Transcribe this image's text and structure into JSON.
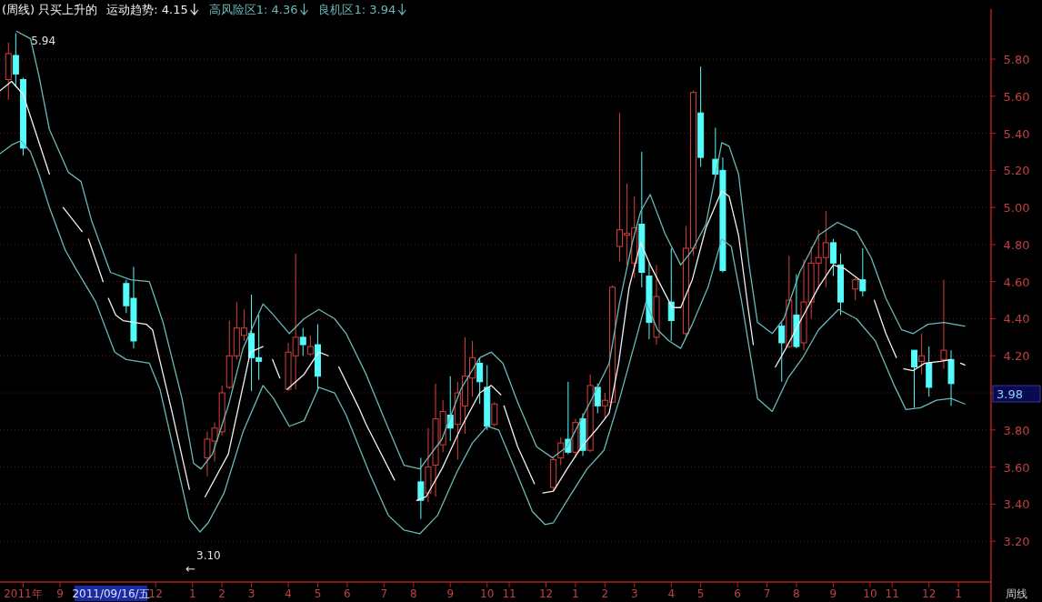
{
  "chart_data": {
    "type": "candlestick",
    "title": "(周线) 只买上升的",
    "legend": "top left",
    "grid": "y",
    "line_style": "solid",
    "xlim": [
      "2011-07-07",
      "2014-02-03"
    ],
    "ylim": [
      2.98,
      6.07
    ],
    "xticks": [
      {
        "value": "2011-07-29",
        "label": "2011年"
      },
      {
        "value": "2011-09-02",
        "label": "9"
      },
      {
        "value": "2011-12-02",
        "label": "12"
      },
      {
        "value": "2012-01-06",
        "label": "1"
      },
      {
        "value": "2012-02-03",
        "label": "2"
      },
      {
        "value": "2012-03-02",
        "label": "3"
      },
      {
        "value": "2012-04-06",
        "label": "4"
      },
      {
        "value": "2012-05-04",
        "label": "5"
      },
      {
        "value": "2012-06-01",
        "label": "6"
      },
      {
        "value": "2012-07-06",
        "label": "7"
      },
      {
        "value": "2012-08-03",
        "label": "8"
      },
      {
        "value": "2012-09-07",
        "label": "9"
      },
      {
        "value": "2012-10-12",
        "label": "10"
      },
      {
        "value": "2012-11-02",
        "label": "11"
      },
      {
        "value": "2012-12-07",
        "label": "12"
      },
      {
        "value": "2013-01-04",
        "label": "1"
      },
      {
        "value": "2013-02-01",
        "label": "2"
      },
      {
        "value": "2013-03-01",
        "label": "3"
      },
      {
        "value": "2013-04-05",
        "label": "4"
      },
      {
        "value": "2013-05-03",
        "label": "5"
      },
      {
        "value": "2013-06-07",
        "label": "6"
      },
      {
        "value": "2013-07-05",
        "label": "7"
      },
      {
        "value": "2013-08-02",
        "label": "8"
      },
      {
        "value": "2013-09-06",
        "label": "9"
      },
      {
        "value": "2013-10-11",
        "label": "10"
      },
      {
        "value": "2013-11-01",
        "label": "11"
      },
      {
        "value": "2013-12-06",
        "label": "12"
      },
      {
        "value": "2014-01-03",
        "label": "1"
      }
    ],
    "yticks": [
      {
        "value": 3.2,
        "label": "3.20"
      },
      {
        "value": 3.4,
        "label": "3.40"
      },
      {
        "value": 3.6,
        "label": "3.60"
      },
      {
        "value": 3.8,
        "label": "3.80"
      },
      {
        "value": 4.0,
        "label": null
      },
      {
        "value": 4.2,
        "label": "4.20"
      },
      {
        "value": 4.4,
        "label": "4.40"
      },
      {
        "value": 4.6,
        "label": "4.60"
      },
      {
        "value": 4.8,
        "label": "4.80"
      },
      {
        "value": 5.0,
        "label": "5.00"
      },
      {
        "value": 5.2,
        "label": "5.20"
      },
      {
        "value": 5.4,
        "label": "5.40"
      },
      {
        "value": 5.6,
        "label": "5.60"
      },
      {
        "value": 5.8,
        "label": "5.80"
      }
    ],
    "x": [
      "2011-07-15",
      "2011-07-22",
      "2011-07-29",
      "2011-11-04",
      "2011-11-11",
      "2012-01-20",
      "2012-01-27",
      "2012-02-03",
      "2012-02-10",
      "2012-02-17",
      "2012-02-24",
      "2012-03-02",
      "2012-03-09",
      "2012-04-06",
      "2012-04-13",
      "2012-04-20",
      "2012-04-27",
      "2012-05-04",
      "2012-08-10",
      "2012-08-17",
      "2012-08-24",
      "2012-08-31",
      "2012-09-07",
      "2012-09-14",
      "2012-09-21",
      "2012-09-28",
      "2012-10-05",
      "2012-10-12",
      "2012-10-19",
      "2012-12-14",
      "2012-12-21",
      "2012-12-28",
      "2013-01-04",
      "2013-01-11",
      "2013-01-18",
      "2013-01-25",
      "2013-02-01",
      "2013-02-08",
      "2013-02-15",
      "2013-02-22",
      "2013-03-01",
      "2013-03-08",
      "2013-03-15",
      "2013-03-22",
      "2013-04-05",
      "2013-04-19",
      "2013-04-26",
      "2013-05-03",
      "2013-05-17",
      "2013-05-24",
      "2013-07-19",
      "2013-07-26",
      "2013-08-02",
      "2013-08-09",
      "2013-08-16",
      "2013-08-23",
      "2013-08-30",
      "2013-09-06",
      "2013-09-13",
      "2013-09-27",
      "2013-10-04",
      "2013-11-22",
      "2013-11-29",
      "2013-12-06",
      "2013-12-20",
      "2013-12-27"
    ],
    "ohlc": [
      [
        5.69,
        5.89,
        5.58,
        5.83
      ],
      [
        5.82,
        5.94,
        5.65,
        5.72
      ],
      [
        5.69,
        5.7,
        5.28,
        5.32
      ],
      [
        4.59,
        4.61,
        4.43,
        4.47
      ],
      [
        4.51,
        4.68,
        4.24,
        4.28
      ],
      [
        3.65,
        3.79,
        3.55,
        3.75
      ],
      [
        3.74,
        3.84,
        3.63,
        3.81
      ],
      [
        3.79,
        4.04,
        3.77,
        4.0
      ],
      [
        4.03,
        4.39,
        4.02,
        4.2
      ],
      [
        4.2,
        4.49,
        4.18,
        4.35
      ],
      [
        4.31,
        4.45,
        4.28,
        4.35
      ],
      [
        4.32,
        4.53,
        4.01,
        4.19
      ],
      [
        4.19,
        4.42,
        4.07,
        4.17
      ],
      [
        4.02,
        4.27,
        4.01,
        4.22
      ],
      [
        4.2,
        4.75,
        4.02,
        4.3
      ],
      [
        4.3,
        4.35,
        4.2,
        4.26
      ],
      [
        4.21,
        4.31,
        4.2,
        4.25
      ],
      [
        4.26,
        4.37,
        4.01,
        4.09
      ],
      [
        3.52,
        3.65,
        3.32,
        3.42
      ],
      [
        3.46,
        3.81,
        3.41,
        3.6
      ],
      [
        3.61,
        4.05,
        3.44,
        3.86
      ],
      [
        3.72,
        3.96,
        3.68,
        3.9
      ],
      [
        3.88,
        4.09,
        3.74,
        3.81
      ],
      [
        3.83,
        4.06,
        3.64,
        4.0
      ],
      [
        3.93,
        4.3,
        3.78,
        4.09
      ],
      [
        4.08,
        4.28,
        3.98,
        4.19
      ],
      [
        4.16,
        4.19,
        3.94,
        4.06
      ],
      [
        4.03,
        4.15,
        3.8,
        3.82
      ],
      [
        3.83,
        3.95,
        3.82,
        3.94
      ],
      [
        3.49,
        3.65,
        3.47,
        3.64
      ],
      [
        3.65,
        3.76,
        3.61,
        3.73
      ],
      [
        3.75,
        4.06,
        3.67,
        3.68
      ],
      [
        3.68,
        3.86,
        3.65,
        3.84
      ],
      [
        3.86,
        3.89,
        3.66,
        3.69
      ],
      [
        3.69,
        4.1,
        3.68,
        4.04
      ],
      [
        4.03,
        4.05,
        3.89,
        3.93
      ],
      [
        3.93,
        4.0,
        3.86,
        3.96
      ],
      [
        3.95,
        4.58,
        3.95,
        4.57
      ],
      [
        4.79,
        5.51,
        4.71,
        4.88
      ],
      [
        4.85,
        5.13,
        4.69,
        4.86
      ],
      [
        4.7,
        5.06,
        4.62,
        4.89
      ],
      [
        4.91,
        5.3,
        4.57,
        4.65
      ],
      [
        4.63,
        4.7,
        4.29,
        4.38
      ],
      [
        4.3,
        4.69,
        4.26,
        4.52
      ],
      [
        4.49,
        4.78,
        4.28,
        4.39
      ],
      [
        4.32,
        4.9,
        4.3,
        4.78
      ],
      [
        4.78,
        5.63,
        4.74,
        5.62
      ],
      [
        5.51,
        5.76,
        5.22,
        5.27
      ],
      [
        5.26,
        5.43,
        5.16,
        5.18
      ],
      [
        5.2,
        5.27,
        4.65,
        4.66
      ],
      [
        4.36,
        4.38,
        4.06,
        4.27
      ],
      [
        4.25,
        4.74,
        4.24,
        4.5
      ],
      [
        4.42,
        4.64,
        4.24,
        4.25
      ],
      [
        4.27,
        4.72,
        4.23,
        4.49
      ],
      [
        4.49,
        4.79,
        4.4,
        4.7
      ],
      [
        4.7,
        4.88,
        4.56,
        4.73
      ],
      [
        4.73,
        4.98,
        4.57,
        4.81
      ],
      [
        4.81,
        4.83,
        4.63,
        4.7
      ],
      [
        4.69,
        4.75,
        4.42,
        4.49
      ],
      [
        4.56,
        4.62,
        4.5,
        4.61
      ],
      [
        4.61,
        4.78,
        4.52,
        4.55
      ],
      [
        4.23,
        4.23,
        3.92,
        4.14
      ],
      [
        4.17,
        4.32,
        4.1,
        4.2
      ],
      [
        4.16,
        4.25,
        3.98,
        4.03
      ],
      [
        4.18,
        4.61,
        4.13,
        4.23
      ],
      [
        4.18,
        4.23,
        3.93,
        4.05
      ]
    ],
    "colors": [
      "#d8403a",
      "#54fcfc",
      "#54fcfc",
      "#54fcfc",
      "#54fcfc",
      "#d8403a",
      "#d8403a",
      "#d8403a",
      "#d8403a",
      "#d8403a",
      "#d8403a",
      "#54fcfc",
      "#54fcfc",
      "#d8403a",
      "#d8403a",
      "#54fcfc",
      "#d8403a",
      "#54fcfc",
      "#54fcfc",
      "#d8403a",
      "#d8403a",
      "#d8403a",
      "#54fcfc",
      "#d8403a",
      "#d8403a",
      "#d8403a",
      "#54fcfc",
      "#54fcfc",
      "#d8403a",
      "#d8403a",
      "#d8403a",
      "#54fcfc",
      "#d8403a",
      "#54fcfc",
      "#d8403a",
      "#54fcfc",
      "#d8403a",
      "#d8403a",
      "#d8403a",
      "#d8403a",
      "#d8403a",
      "#54fcfc",
      "#54fcfc",
      "#d8403a",
      "#54fcfc",
      "#d8403a",
      "#d8403a",
      "#54fcfc",
      "#54fcfc",
      "#54fcfc",
      "#54fcfc",
      "#d8403a",
      "#54fcfc",
      "#d8403a",
      "#d8403a",
      "#d8403a",
      "#d8403a",
      "#54fcfc",
      "#54fcfc",
      "#d8403a",
      "#54fcfc",
      "#54fcfc",
      "#d8403a",
      "#54fcfc",
      "#d8403a",
      "#54fcfc"
    ],
    "series": [
      {
        "name": "运动趋势: 4.15",
        "type": "line",
        "color": "#f0f0f0",
        "x": [
          "2011-07-07",
          "2011-07-18",
          "2011-07-29",
          "2011-08-23",
          "2011-08-30",
          "2011-09-05",
          "2011-09-23",
          "2011-09-26",
          "2011-09-29",
          "2011-10-13",
          "2011-10-15",
          "2011-10-18",
          "2011-10-25",
          "2011-11-01",
          "2011-11-23",
          "2011-11-29",
          "2011-12-17",
          "2012-01-03",
          "2012-01-10",
          "2012-01-18",
          "2012-02-09",
          "2012-03-01",
          "2012-03-13",
          "2012-03-17",
          "2012-03-22",
          "2012-03-29",
          "2012-04-01",
          "2012-04-05",
          "2012-04-21",
          "2012-05-05",
          "2012-05-14",
          "2012-05-19",
          "2012-05-24",
          "2012-06-12",
          "2012-06-19",
          "2012-07-16",
          "2012-07-26",
          "2012-08-06",
          "2012-08-15",
          "2012-08-30",
          "2012-09-17",
          "2012-10-05",
          "2012-10-16",
          "2012-10-25",
          "2012-10-26",
          "2012-10-28",
          "2012-11-10",
          "2012-11-26",
          "2012-11-30",
          "2012-12-04",
          "2012-12-14",
          "2012-12-27",
          "2013-01-10",
          "2013-01-25",
          "2013-02-05",
          "2013-02-14",
          "2013-02-24",
          "2013-03-07",
          "2013-03-16",
          "2013-03-27",
          "2013-04-06",
          "2013-04-14",
          "2013-04-25",
          "2013-05-08",
          "2013-05-23",
          "2013-05-30",
          "2013-06-08",
          "2013-06-17",
          "2013-06-22",
          "2013-07-02",
          "2013-07-13",
          "2013-07-23",
          "2013-08-05",
          "2013-08-23",
          "2013-09-06",
          "2013-09-17",
          "2013-10-01",
          "2013-10-08",
          "2013-10-15",
          "2013-10-26",
          "2013-11-05",
          "2013-11-08",
          "2013-11-12",
          "2013-11-21",
          "2013-12-02",
          "2013-12-17",
          "2013-12-27",
          "2013-12-31",
          "2014-01-05",
          "2014-01-09"
        ],
        "values": [
          5.63,
          5.68,
          5.61,
          5.18,
          null,
          5.0,
          4.87,
          null,
          4.83,
          4.6,
          null,
          4.51,
          4.42,
          4.39,
          4.37,
          4.34,
          3.91,
          3.48,
          null,
          3.44,
          3.67,
          4.22,
          4.25,
          null,
          4.18,
          4.08,
          null,
          4.02,
          4.1,
          4.22,
          4.2,
          null,
          4.14,
          3.92,
          3.83,
          3.53,
          null,
          3.42,
          3.44,
          3.59,
          3.81,
          4.0,
          4.04,
          3.99,
          null,
          3.93,
          3.71,
          3.51,
          null,
          3.46,
          3.47,
          3.59,
          3.71,
          3.81,
          3.89,
          4.16,
          4.57,
          4.81,
          4.69,
          4.57,
          4.46,
          4.46,
          4.61,
          4.89,
          5.09,
          5.06,
          4.85,
          4.46,
          4.26,
          null,
          4.14,
          4.24,
          4.38,
          4.57,
          4.69,
          4.67,
          4.61,
          null,
          4.5,
          4.32,
          4.19,
          null,
          4.13,
          4.12,
          4.16,
          4.17,
          4.18,
          null,
          4.16,
          4.15
        ]
      },
      {
        "name": "高风险区1: 4.36",
        "type": "line",
        "color": "#6ab8b8",
        "x": [
          "2011-07-23",
          "2011-08-05",
          "2011-08-13",
          "2011-08-23",
          "2011-09-10",
          "2011-09-22",
          "2011-10-02",
          "2011-10-20",
          "2011-11-08",
          "2011-11-26",
          "2011-12-09",
          "2011-12-27",
          "2012-01-07",
          "2012-01-14",
          "2012-01-25",
          "2012-02-09",
          "2012-02-23",
          "2012-03-13",
          "2012-03-23",
          "2012-04-07",
          "2012-04-21",
          "2012-05-05",
          "2012-05-20",
          "2012-05-31",
          "2012-06-19",
          "2012-07-07",
          "2012-07-25",
          "2012-08-09",
          "2012-08-30",
          "2012-09-17",
          "2012-10-05",
          "2012-10-16",
          "2012-10-27",
          "2012-11-10",
          "2012-11-28",
          "2012-12-13",
          "2012-12-27",
          "2013-01-18",
          "2013-02-05",
          "2013-02-15",
          "2013-02-27",
          "2013-03-07",
          "2013-03-16",
          "2013-03-30",
          "2013-04-14",
          "2013-04-25",
          "2013-05-08",
          "2013-05-23",
          "2013-05-30",
          "2013-06-08",
          "2013-06-18",
          "2013-06-26",
          "2013-07-10",
          "2013-07-21",
          "2013-08-05",
          "2013-08-23",
          "2013-09-10",
          "2013-09-28",
          "2013-10-12",
          "2013-10-26",
          "2013-11-10",
          "2013-11-21",
          "2013-12-05",
          "2013-12-20",
          "2014-01-09"
        ],
        "values": [
          5.95,
          5.91,
          5.71,
          5.42,
          5.19,
          5.14,
          4.93,
          4.65,
          4.61,
          4.6,
          4.38,
          3.97,
          3.62,
          3.59,
          3.67,
          3.93,
          4.24,
          4.48,
          4.42,
          4.32,
          4.4,
          4.45,
          4.4,
          4.32,
          4.1,
          3.85,
          3.61,
          3.59,
          3.75,
          4.02,
          4.19,
          4.22,
          4.16,
          3.95,
          3.71,
          3.65,
          3.71,
          3.95,
          4.16,
          4.49,
          4.81,
          4.98,
          5.07,
          4.86,
          4.69,
          4.77,
          4.91,
          5.35,
          5.33,
          5.18,
          4.69,
          4.38,
          4.32,
          4.4,
          4.65,
          4.85,
          4.92,
          4.87,
          4.73,
          4.51,
          4.34,
          4.32,
          4.37,
          4.38,
          4.36
        ]
      },
      {
        "name": "良机区1: 3.94",
        "type": "line",
        "color": "#6ab8b8",
        "x": [
          "2011-07-07",
          "2011-07-19",
          "2011-07-27",
          "2011-08-05",
          "2011-08-13",
          "2011-08-23",
          "2011-09-07",
          "2011-09-17",
          "2011-10-06",
          "2011-10-24",
          "2011-11-04",
          "2011-11-26",
          "2011-12-06",
          "2011-12-20",
          "2012-01-03",
          "2012-01-13",
          "2012-01-21",
          "2012-02-05",
          "2012-02-23",
          "2012-03-13",
          "2012-03-23",
          "2012-04-07",
          "2012-04-21",
          "2012-05-05",
          "2012-05-20",
          "2012-05-31",
          "2012-06-22",
          "2012-07-10",
          "2012-07-25",
          "2012-08-09",
          "2012-08-26",
          "2012-09-13",
          "2012-09-28",
          "2012-10-12",
          "2012-10-23",
          "2012-11-06",
          "2012-11-24",
          "2012-12-06",
          "2012-12-14",
          "2012-12-27",
          "2013-01-15",
          "2013-01-31",
          "2013-02-15",
          "2013-03-02",
          "2013-03-12",
          "2013-03-23",
          "2013-04-03",
          "2013-04-14",
          "2013-04-25",
          "2013-05-10",
          "2013-05-23",
          "2013-06-01",
          "2013-06-11",
          "2013-06-26",
          "2013-07-10",
          "2013-07-25",
          "2013-08-08",
          "2013-08-23",
          "2013-09-11",
          "2013-09-28",
          "2013-10-16",
          "2013-11-03",
          "2013-11-14",
          "2013-11-28",
          "2013-12-13",
          "2013-12-27",
          "2014-01-09"
        ],
        "values": [
          5.29,
          5.34,
          5.36,
          5.3,
          5.18,
          5.0,
          4.77,
          4.67,
          4.49,
          4.22,
          4.18,
          4.16,
          4.02,
          3.67,
          3.32,
          3.25,
          3.3,
          3.46,
          3.79,
          4.04,
          3.97,
          3.82,
          3.85,
          4.03,
          4.0,
          3.88,
          3.57,
          3.34,
          3.26,
          3.24,
          3.34,
          3.57,
          3.73,
          3.82,
          3.8,
          3.61,
          3.36,
          3.29,
          3.3,
          3.42,
          3.59,
          3.69,
          3.97,
          4.28,
          4.49,
          4.34,
          4.28,
          4.24,
          4.37,
          4.57,
          4.83,
          4.79,
          4.49,
          3.97,
          3.9,
          4.08,
          4.19,
          4.34,
          4.45,
          4.4,
          4.28,
          4.04,
          3.91,
          3.92,
          3.96,
          3.97,
          3.94
        ]
      }
    ],
    "annotations": [
      {
        "text": "5.94",
        "x": "2011-07-22",
        "y": 5.94
      },
      "3.10",
      "←",
      "2011/09/16/五",
      "周线",
      "3.98"
    ]
  }
}
